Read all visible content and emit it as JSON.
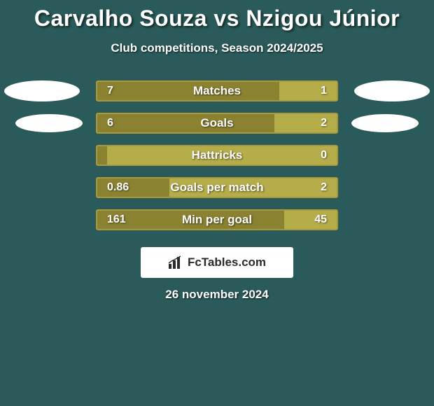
{
  "title": "Carvalho Souza vs Nzigou Júnior",
  "subtitle": "Club competitions, Season 2024/2025",
  "date": "26 november 2024",
  "brand": "FcTables.com",
  "colors": {
    "bg": "#2a5a5a",
    "bar_border": "#a89a3a",
    "bar_left": "#8a8230",
    "bar_right": "#b5ad4a",
    "bar_empty": "#f0f0f0"
  },
  "stats": [
    {
      "label": "Matches",
      "left_val": "7",
      "right_val": "1",
      "left_pct": 76,
      "show_ovals": "big"
    },
    {
      "label": "Goals",
      "left_val": "6",
      "right_val": "2",
      "left_pct": 74,
      "show_ovals": "small"
    },
    {
      "label": "Hattricks",
      "left_val": "0",
      "right_val": "0",
      "left_pct": 4,
      "show_ovals": "none"
    },
    {
      "label": "Goals per match",
      "left_val": "0.86",
      "right_val": "2",
      "left_pct": 30,
      "show_ovals": "none"
    },
    {
      "label": "Min per goal",
      "left_val": "161",
      "right_val": "45",
      "left_pct": 78,
      "show_ovals": "none"
    }
  ]
}
